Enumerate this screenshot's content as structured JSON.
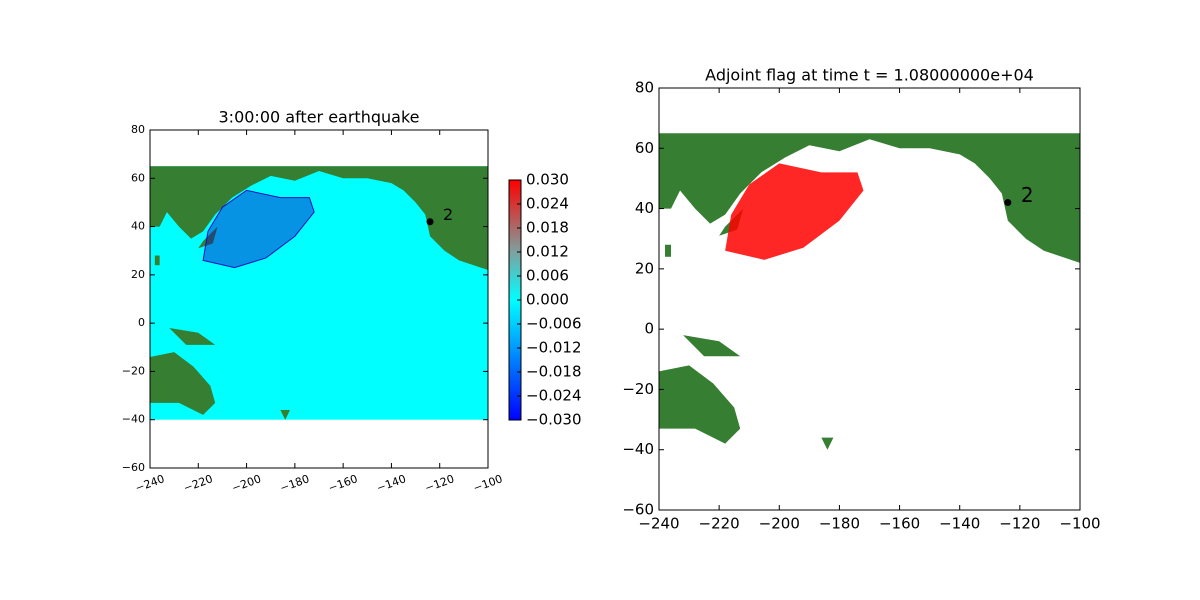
{
  "chart_data": [
    {
      "type": "map",
      "title": "3:00:00 after earthquake",
      "xlim": [
        -240,
        -100
      ],
      "ylim": [
        -60,
        80
      ],
      "xticks": [
        {
          "value": -240,
          "label": "−240"
        },
        {
          "value": -220,
          "label": "−220"
        },
        {
          "value": -200,
          "label": "−200"
        },
        {
          "value": -180,
          "label": "−180"
        },
        {
          "value": -160,
          "label": "−160"
        },
        {
          "value": -140,
          "label": "−140"
        },
        {
          "value": -120,
          "label": "−120"
        },
        {
          "value": -100,
          "label": "−100"
        }
      ],
      "yticks": [
        {
          "value": -60,
          "label": "−60"
        },
        {
          "value": -40,
          "label": "−40"
        },
        {
          "value": -20,
          "label": "−20"
        },
        0,
        20,
        40,
        60,
        80
      ],
      "ocean_color": "#00ffff",
      "land_color": "#367e31",
      "wave_color": "#1010c0",
      "gauges": [
        {
          "label": "2",
          "x": -124,
          "y": 42
        }
      ],
      "colorbar": {
        "lim": [
          -0.03,
          0.03
        ],
        "ticks": [
          {
            "value": 0.03,
            "label": "0.030"
          },
          {
            "value": 0.024,
            "label": "0.024"
          },
          {
            "value": 0.018,
            "label": "0.018"
          },
          {
            "value": 0.012,
            "label": "0.012"
          },
          {
            "value": 0.006,
            "label": "0.006"
          },
          {
            "value": 0,
            "label": "0.000"
          },
          {
            "value": -0.006,
            "label": "−0.006"
          },
          {
            "value": -0.012,
            "label": "−0.012"
          },
          {
            "value": -0.018,
            "label": "−0.018"
          },
          {
            "value": -0.024,
            "label": "−0.024"
          },
          {
            "value": -0.03,
            "label": "−0.030"
          }
        ]
      }
    },
    {
      "type": "map",
      "title": "Adjoint flag at time t = 1.08000000e+04",
      "xlim": [
        -240,
        -100
      ],
      "ylim": [
        -60,
        80
      ],
      "xticks": [
        {
          "value": -240,
          "label": "−240"
        },
        {
          "value": -220,
          "label": "−220"
        },
        {
          "value": -200,
          "label": "−200"
        },
        {
          "value": -180,
          "label": "−180"
        },
        {
          "value": -160,
          "label": "−160"
        },
        {
          "value": -140,
          "label": "−140"
        },
        {
          "value": -120,
          "label": "−120"
        },
        {
          "value": -100,
          "label": "−100"
        }
      ],
      "yticks": [
        {
          "value": -60,
          "label": "−60"
        },
        {
          "value": -40,
          "label": "−40"
        },
        {
          "value": -20,
          "label": "−20"
        },
        0,
        20,
        40,
        60,
        80
      ],
      "ocean_color": "#ffffff",
      "land_color": "#367e31",
      "wave_color": "#ff0000",
      "gauges": [
        {
          "label": "2",
          "x": -124,
          "y": 42
        }
      ]
    }
  ]
}
